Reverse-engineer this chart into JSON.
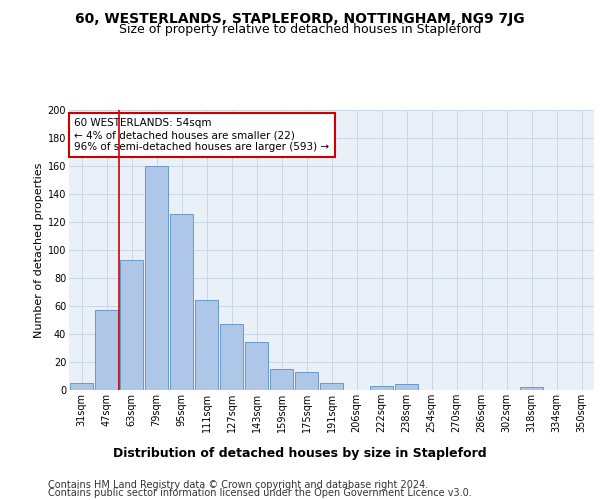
{
  "title": "60, WESTERLANDS, STAPLEFORD, NOTTINGHAM, NG9 7JG",
  "subtitle": "Size of property relative to detached houses in Stapleford",
  "xlabel_bottom": "Distribution of detached houses by size in Stapleford",
  "ylabel": "Number of detached properties",
  "categories": [
    "31sqm",
    "47sqm",
    "63sqm",
    "79sqm",
    "95sqm",
    "111sqm",
    "127sqm",
    "143sqm",
    "159sqm",
    "175sqm",
    "191sqm",
    "206sqm",
    "222sqm",
    "238sqm",
    "254sqm",
    "270sqm",
    "286sqm",
    "302sqm",
    "318sqm",
    "334sqm",
    "350sqm"
  ],
  "values": [
    5,
    57,
    93,
    160,
    126,
    64,
    47,
    34,
    15,
    13,
    5,
    0,
    3,
    4,
    0,
    0,
    0,
    0,
    2,
    0,
    0
  ],
  "bar_color": "#aec6e8",
  "bar_edge_color": "#5a8fc2",
  "red_line_x": 1.5,
  "annotation_text": "60 WESTERLANDS: 54sqm\n← 4% of detached houses are smaller (22)\n96% of semi-detached houses are larger (593) →",
  "annotation_box_color": "#ffffff",
  "annotation_box_edge_color": "#cc0000",
  "ylim": [
    0,
    200
  ],
  "yticks": [
    0,
    20,
    40,
    60,
    80,
    100,
    120,
    140,
    160,
    180,
    200
  ],
  "grid_color": "#c8d8e8",
  "bg_color": "#eaf0f8",
  "footer_line1": "Contains HM Land Registry data © Crown copyright and database right 2024.",
  "footer_line2": "Contains public sector information licensed under the Open Government Licence v3.0.",
  "title_fontsize": 10,
  "subtitle_fontsize": 9,
  "ylabel_fontsize": 8,
  "tick_fontsize": 7,
  "annotation_fontsize": 7.5,
  "footer_fontsize": 7,
  "xlabel_fontsize": 9
}
